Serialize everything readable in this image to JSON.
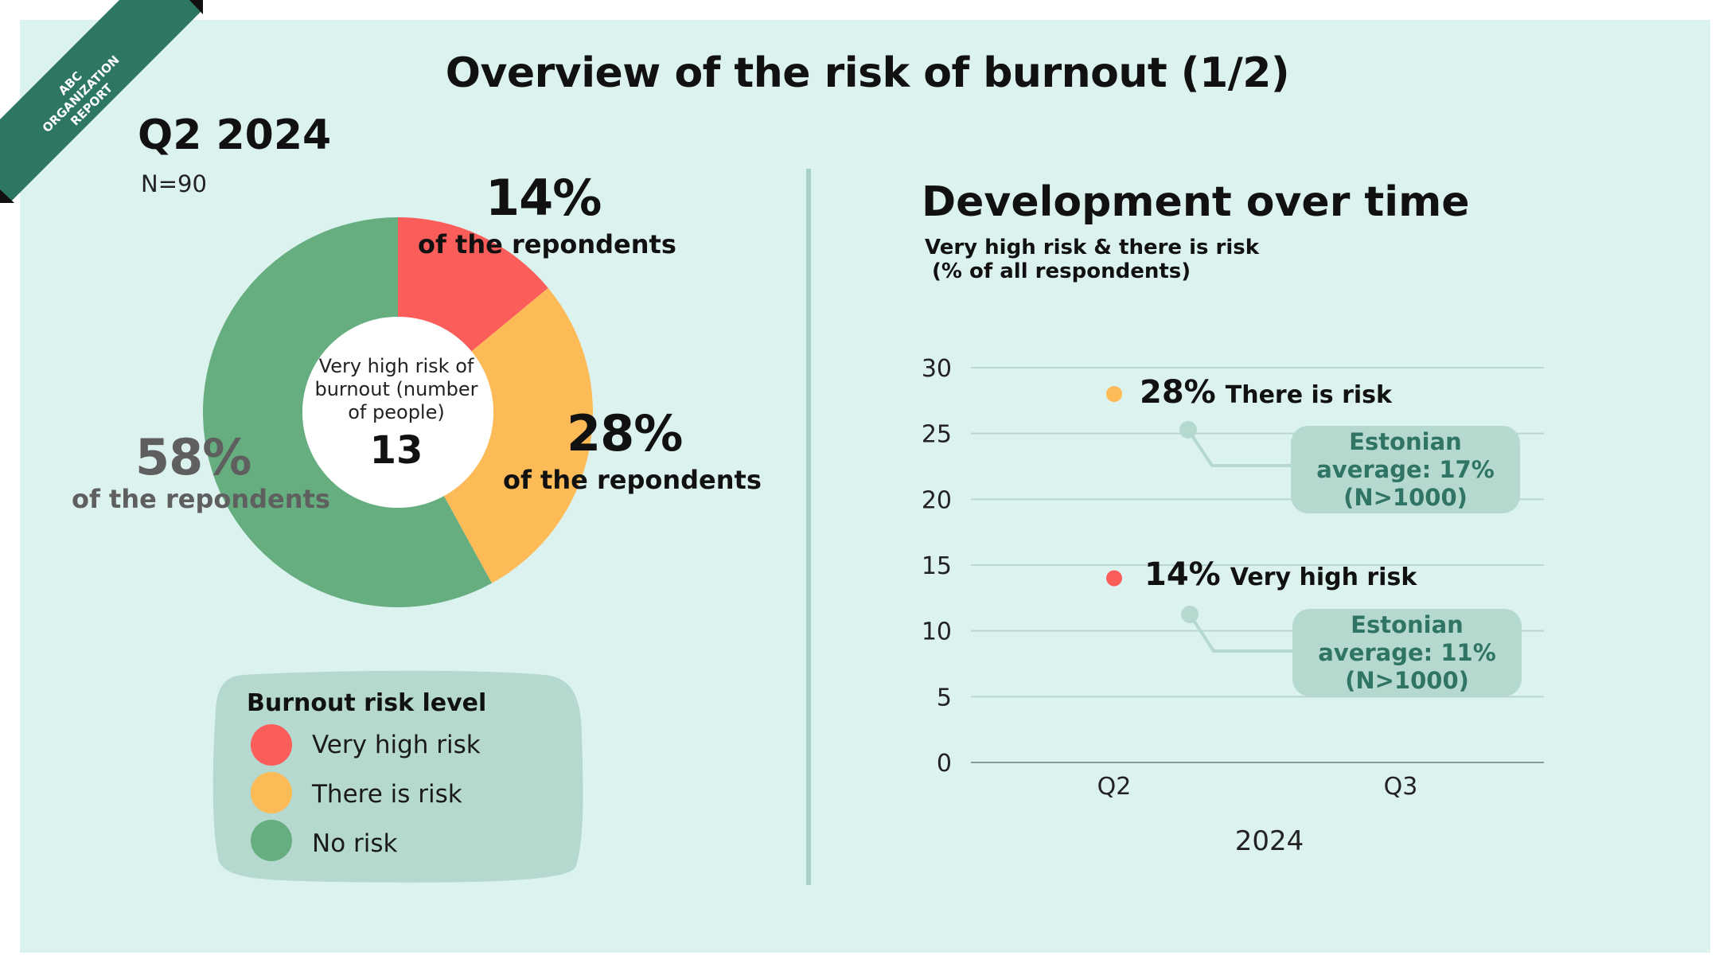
{
  "header": {
    "ribbon_text": "ABC ORGANIZATION\nREPORT",
    "title": "Overview of the risk of burnout (1/2)"
  },
  "colors": {
    "background": "#dcf2ef",
    "very_high_risk": "#fb5d5a",
    "there_is_risk": "#fdbb58",
    "no_risk": "#66ae80",
    "ribbon": "#2c7663",
    "callout_bg": "#b5d9ce",
    "callout_text": "#2f7464"
  },
  "left_panel": {
    "period": "Q2 2024",
    "sample": "N=90",
    "center_caption": "Very high risk of burnout (number of people)",
    "center_value": "13",
    "segments": [
      {
        "pct": "14%",
        "caption": "of the repondents"
      },
      {
        "pct": "28%",
        "caption": "of the repondents"
      },
      {
        "pct": "58%",
        "caption": "of the repondents"
      }
    ],
    "legend": {
      "title": "Burnout risk level",
      "items": [
        {
          "label": "Very high risk",
          "color": "#fb5d5a"
        },
        {
          "label": "There is risk",
          "color": "#fdbb58"
        },
        {
          "label": "No risk",
          "color": "#66ae80"
        }
      ]
    }
  },
  "right_panel": {
    "title": "Development over time",
    "subtitle": "Very high risk & there is risk\n (% of all respondents)",
    "points": [
      {
        "value_text": "28%",
        "label": "There is risk"
      },
      {
        "value_text": "14%",
        "label": "Very high risk"
      }
    ],
    "callouts": [
      {
        "text": "Estonian\naverage: 17%\n(N>1000)"
      },
      {
        "text": "Estonian\naverage: 11%\n(N>1000)"
      }
    ]
  },
  "chart_data": [
    {
      "type": "pie",
      "labels": [
        "Very high risk",
        "There is risk",
        "No risk"
      ],
      "values": [
        14,
        28,
        58
      ],
      "colors": [
        "#fb5d5a",
        "#fdbb58",
        "#66ae80"
      ],
      "title": "Q2 2024"
    },
    {
      "type": "scatter",
      "title": "Development over time",
      "subtitle": "Very high risk & there is risk (% of all respondents)",
      "categories": [
        "Q2",
        "Q3"
      ],
      "xlabel": "2024",
      "ylim": [
        0,
        30
      ],
      "yticks": [
        0,
        5,
        10,
        15,
        20,
        25,
        30
      ],
      "grid": true,
      "series": [
        {
          "name": "There is risk",
          "values": [
            28,
            null
          ],
          "color": "#fdbb58"
        },
        {
          "name": "Very high risk",
          "values": [
            14,
            null
          ],
          "color": "#fb5d5a"
        }
      ]
    }
  ]
}
